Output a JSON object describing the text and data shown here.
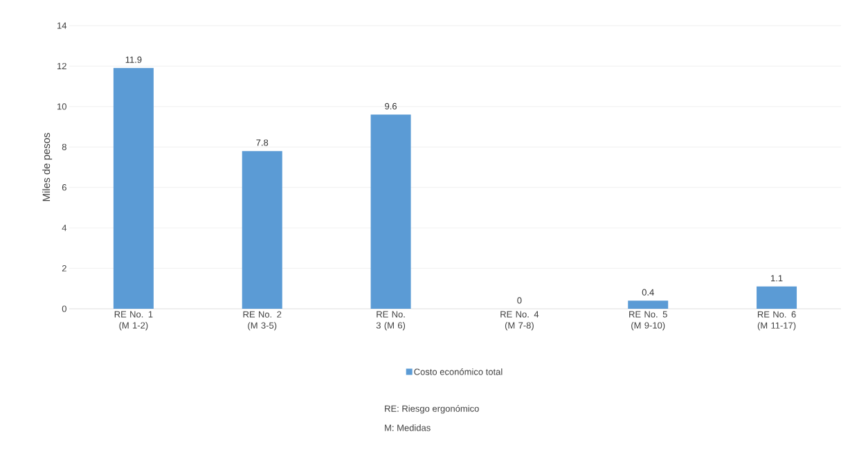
{
  "chart_data": {
    "type": "bar",
    "ylabel": "Miles de pesos",
    "categories": [
      "RE No. 1 (M 1-2)",
      "RE No. 2 (M 3-5)",
      "RE No. 3 (M 6)",
      "RE No. 4 (M 7-8)",
      "RE No. 5 (M 9-10)",
      "RE No. 6 (M 11-17)"
    ],
    "series": [
      {
        "name": "Costo económico total",
        "color": "#5b9bd5",
        "values": [
          11.9,
          7.8,
          9.6,
          0,
          0.4,
          1.1
        ]
      }
    ],
    "ylim": [
      0,
      14
    ],
    "yticks": [
      0,
      2,
      4,
      6,
      8,
      10,
      12,
      14
    ],
    "grid": "y",
    "legend": "bottom",
    "data_labels": true,
    "annotations": [
      "RE: Riesgo ergonómico",
      "M: Medidas"
    ]
  }
}
